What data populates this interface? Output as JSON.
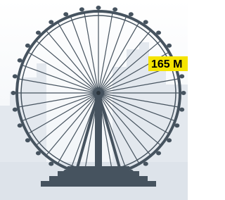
{
  "height_label": "165 M"
}
